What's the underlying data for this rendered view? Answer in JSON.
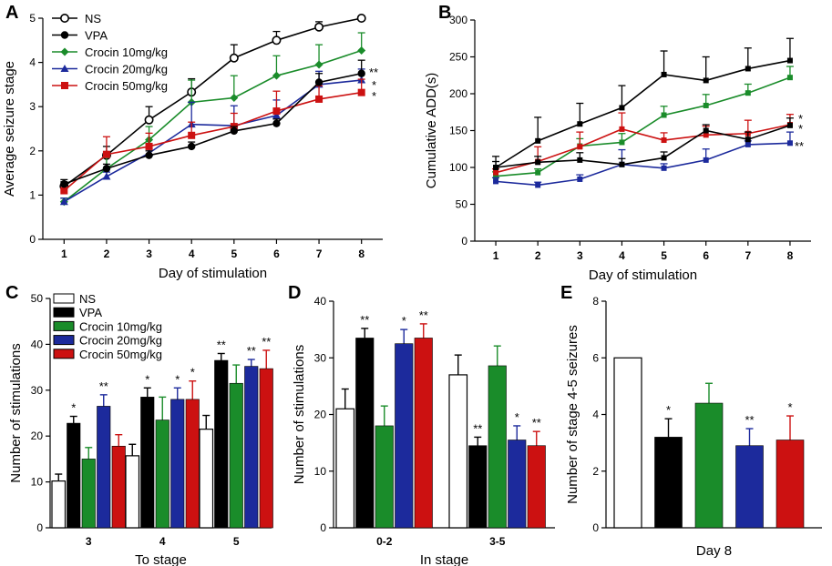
{
  "colors": {
    "NS": "#ffffff",
    "VPA": "#000000",
    "C10": "#1a8c2a",
    "C20": "#1c2a9c",
    "C50": "#cc1111"
  },
  "legend": [
    "NS",
    "VPA",
    "Crocin 10mg/kg",
    "Crocin 20mg/kg",
    "Crocin 50mg/kg"
  ],
  "chart_data": [
    {
      "panel": "A",
      "type": "line",
      "xlabel": "Day of stimulation",
      "ylabel": "Average seizure stage",
      "x": [
        1,
        2,
        3,
        4,
        5,
        6,
        7,
        8
      ],
      "ylim": [
        0,
        5
      ],
      "yticks": [
        0,
        1,
        2,
        3,
        4,
        5
      ],
      "series": [
        {
          "name": "NS",
          "marker": "circle-open",
          "values": [
            1.2,
            1.9,
            2.7,
            3.33,
            4.1,
            4.5,
            4.8,
            5.0
          ],
          "err": [
            0.1,
            0.2,
            0.3,
            0.3,
            0.3,
            0.2,
            0.12,
            0
          ]
        },
        {
          "name": "VPA",
          "marker": "circle",
          "values": [
            1.25,
            1.6,
            1.9,
            2.1,
            2.45,
            2.62,
            3.55,
            3.75
          ],
          "err": [
            0.1,
            0.1,
            0.1,
            0.1,
            0.1,
            0.1,
            0.2,
            0.3
          ]
        },
        {
          "name": "Crocin 10mg/kg",
          "marker": "diamond",
          "values": [
            0.85,
            1.6,
            2.25,
            3.1,
            3.2,
            3.7,
            3.95,
            4.27
          ],
          "err": [
            0.08,
            0.25,
            0.3,
            0.5,
            0.5,
            0.45,
            0.45,
            0.4
          ]
        },
        {
          "name": "Crocin 20mg/kg",
          "marker": "triangle",
          "values": [
            0.85,
            1.42,
            1.95,
            2.6,
            2.57,
            2.8,
            3.5,
            3.6
          ],
          "err": [
            0.08,
            0.1,
            0.1,
            0.5,
            0.45,
            0.35,
            0.3,
            0.25
          ]
        },
        {
          "name": "Crocin 50mg/kg",
          "marker": "square",
          "values": [
            1.1,
            1.92,
            2.1,
            2.35,
            2.55,
            2.9,
            3.17,
            3.32
          ],
          "err": [
            0.15,
            0.4,
            0.3,
            0.3,
            0.3,
            0.45,
            0.3,
            0.3
          ]
        }
      ],
      "annotations": [
        "**",
        "*",
        "*"
      ]
    },
    {
      "panel": "B",
      "type": "line",
      "xlabel": "Day of stimulation",
      "ylabel": "Cumulative ADD(s)",
      "x": [
        1,
        2,
        3,
        4,
        5,
        6,
        7,
        8
      ],
      "ylim": [
        0,
        300
      ],
      "yticks": [
        0,
        50,
        100,
        150,
        200,
        250,
        300
      ],
      "series": [
        {
          "name": "NS",
          "values": [
            100,
            136,
            159,
            181,
            226,
            218,
            234,
            245
          ],
          "err": [
            15,
            32,
            28,
            30,
            32,
            32,
            28,
            30
          ]
        },
        {
          "name": "VPA",
          "values": [
            100,
            107,
            110,
            104,
            113,
            150,
            138,
            157
          ],
          "err": [
            8,
            8,
            10,
            8,
            8,
            8,
            10,
            10
          ]
        },
        {
          "name": "Crocin 10mg/kg",
          "values": [
            88,
            93,
            129,
            134,
            171,
            184,
            201,
            222
          ],
          "err": [
            6,
            5,
            10,
            12,
            12,
            15,
            12,
            15
          ]
        },
        {
          "name": "Crocin 20mg/kg",
          "values": [
            81,
            76,
            84,
            104,
            99,
            110,
            131,
            133
          ],
          "err": [
            5,
            4,
            6,
            20,
            6,
            15,
            5,
            15
          ]
        },
        {
          "name": "Crocin 50mg/kg",
          "values": [
            93,
            108,
            128,
            152,
            137,
            144,
            146,
            158
          ],
          "err": [
            5,
            20,
            20,
            22,
            10,
            12,
            18,
            14
          ]
        }
      ],
      "annotations": [
        "*",
        "*",
        "**"
      ]
    },
    {
      "panel": "C",
      "type": "bar",
      "xlabel": "To stage",
      "ylabel": "Number of stimulations",
      "categories": [
        "3",
        "4",
        "5"
      ],
      "ylim": [
        0,
        50
      ],
      "yticks": [
        0,
        10,
        20,
        30,
        40,
        50
      ],
      "series": [
        {
          "name": "NS",
          "values": [
            10.2,
            15.7,
            21.5
          ],
          "err": [
            1.5,
            2.5,
            3
          ],
          "sig": [
            "",
            "",
            ""
          ]
        },
        {
          "name": "VPA",
          "values": [
            22.8,
            28.5,
            36.5
          ],
          "err": [
            1.5,
            2,
            1.5
          ],
          "sig": [
            "*",
            "*",
            "**"
          ]
        },
        {
          "name": "Crocin 10mg/kg",
          "values": [
            15,
            23.5,
            31.5
          ],
          "err": [
            2.5,
            5,
            4
          ],
          "sig": [
            "",
            "",
            ""
          ]
        },
        {
          "name": "Crocin 20mg/kg",
          "values": [
            26.5,
            28,
            35.2
          ],
          "err": [
            2.5,
            2.5,
            1.5
          ],
          "sig": [
            "**",
            "*",
            "**"
          ]
        },
        {
          "name": "Crocin 50mg/kg",
          "values": [
            17.8,
            28,
            34.7
          ],
          "err": [
            2.5,
            4,
            4
          ],
          "sig": [
            "",
            "*",
            "**"
          ]
        }
      ]
    },
    {
      "panel": "D",
      "type": "bar",
      "xlabel": "In stage",
      "ylabel": "Number of stimulations",
      "categories": [
        "0-2",
        "3-5"
      ],
      "ylim": [
        0,
        40
      ],
      "yticks": [
        0,
        10,
        20,
        30,
        40
      ],
      "series": [
        {
          "name": "NS",
          "values": [
            21,
            27
          ],
          "err": [
            3.5,
            3.5
          ],
          "sig": [
            "",
            ""
          ]
        },
        {
          "name": "VPA",
          "values": [
            33.5,
            14.5
          ],
          "err": [
            1.7,
            1.5
          ],
          "sig": [
            "**",
            "**"
          ]
        },
        {
          "name": "Crocin 10mg/kg",
          "values": [
            18,
            28.6
          ],
          "err": [
            3.5,
            3.5
          ],
          "sig": [
            "",
            ""
          ]
        },
        {
          "name": "Crocin 20mg/kg",
          "values": [
            32.5,
            15.5
          ],
          "err": [
            2.5,
            2.5
          ],
          "sig": [
            "*",
            "*"
          ]
        },
        {
          "name": "Crocin 50mg/kg",
          "values": [
            33.5,
            14.5
          ],
          "err": [
            2.5,
            2.5
          ],
          "sig": [
            "**",
            "**"
          ]
        }
      ]
    },
    {
      "panel": "E",
      "type": "bar",
      "xlabel": "Day 8",
      "ylabel": "Number of stage 4-5 seizures",
      "categories": [
        "Day 8"
      ],
      "ylim": [
        0,
        8
      ],
      "yticks": [
        0,
        2,
        4,
        6,
        8
      ],
      "series": [
        {
          "name": "NS",
          "values": [
            6
          ],
          "err": [
            0
          ],
          "sig": [
            ""
          ]
        },
        {
          "name": "VPA",
          "values": [
            3.2
          ],
          "err": [
            0.65
          ],
          "sig": [
            "*"
          ]
        },
        {
          "name": "Crocin 10mg/kg",
          "values": [
            4.4
          ],
          "err": [
            0.7
          ],
          "sig": [
            ""
          ]
        },
        {
          "name": "Crocin 20mg/kg",
          "values": [
            2.9
          ],
          "err": [
            0.6
          ],
          "sig": [
            "**"
          ]
        },
        {
          "name": "Crocin 50mg/kg",
          "values": [
            3.1
          ],
          "err": [
            0.85
          ],
          "sig": [
            "*"
          ]
        }
      ]
    }
  ]
}
